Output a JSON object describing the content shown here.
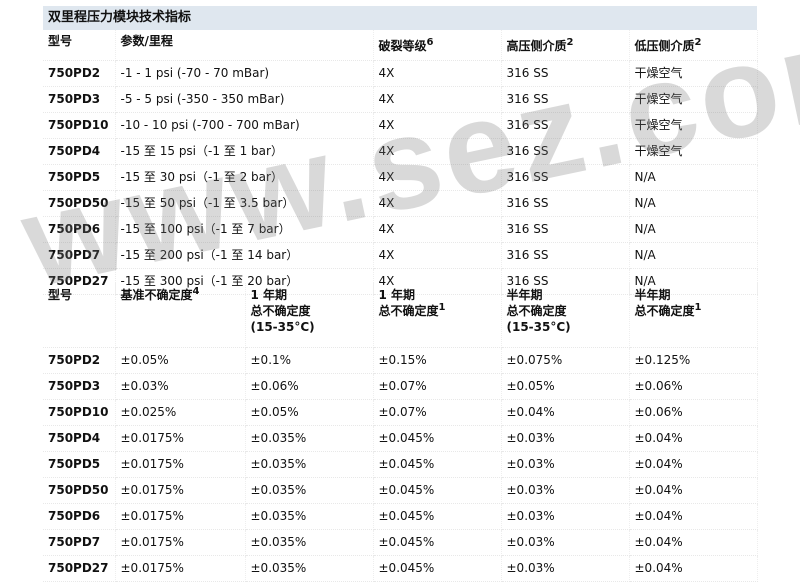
{
  "title": "双里程压力模块技术指标",
  "watermark": "www.sez.com.cn",
  "table1": {
    "headers": [
      {
        "text": "型号",
        "sup": ""
      },
      {
        "text": "参数/里程",
        "sup": ""
      },
      {
        "text": "破裂等级",
        "sup": "6"
      },
      {
        "text": "高压侧介质",
        "sup": "2"
      },
      {
        "text": "低压侧介质",
        "sup": "2"
      }
    ],
    "rows": [
      [
        "750PD2",
        "-1 - 1 psi (-70 - 70 mBar)",
        "4X",
        "316 SS",
        "干燥空气"
      ],
      [
        "750PD3",
        "-5 - 5 psi (-350 - 350 mBar)",
        "4X",
        "316 SS",
        "干燥空气"
      ],
      [
        "750PD10",
        "-10 - 10 psi (-700 - 700 mBar)",
        "4X",
        "316 SS",
        "干燥空气"
      ],
      [
        "750PD4",
        "-15 至 15 psi（-1 至 1 bar）",
        "4X",
        "316 SS",
        "干燥空气"
      ],
      [
        "750PD5",
        "-15 至 30 psi（-1 至 2 bar）",
        "4X",
        "316 SS",
        "N/A"
      ],
      [
        "750PD50",
        "-15 至 50 psi（-1 至 3.5 bar）",
        "4X",
        "316 SS",
        "N/A"
      ],
      [
        "750PD6",
        "-15 至 100 psi（-1 至 7 bar）",
        "4X",
        "316 SS",
        "N/A"
      ],
      [
        "750PD7",
        "-15 至 200 psi（-1 至 14 bar）",
        "4X",
        "316 SS",
        "N/A"
      ],
      [
        "750PD27",
        "-15 至 300 psi（-1 至 20 bar）",
        "4X",
        "316 SS",
        "N/A"
      ]
    ]
  },
  "table2": {
    "headers": [
      {
        "lines": [
          "型号"
        ],
        "sup": ""
      },
      {
        "lines": [
          "基准不确定度"
        ],
        "sup": "4"
      },
      {
        "lines": [
          "1 年期",
          "总不确定度",
          "(15-35°C)"
        ],
        "sup": ""
      },
      {
        "lines": [
          "1 年期",
          "总不确定度"
        ],
        "sup": "1"
      },
      {
        "lines": [
          "半年期",
          "总不确定度",
          "(15-35°C)"
        ],
        "sup": ""
      },
      {
        "lines": [
          "半年期",
          "总不确定度"
        ],
        "sup": "1"
      }
    ],
    "rows": [
      [
        "750PD2",
        "±0.05%",
        "±0.1%",
        "±0.15%",
        "±0.075%",
        "±0.125%"
      ],
      [
        "750PD3",
        "±0.03%",
        "±0.06%",
        "±0.07%",
        "±0.05%",
        "±0.06%"
      ],
      [
        "750PD10",
        "±0.025%",
        "±0.05%",
        "±0.07%",
        "±0.04%",
        "±0.06%"
      ],
      [
        "750PD4",
        "±0.0175%",
        "±0.035%",
        "±0.045%",
        "±0.03%",
        "±0.04%"
      ],
      [
        "750PD5",
        "±0.0175%",
        "±0.035%",
        "±0.045%",
        "±0.03%",
        "±0.04%"
      ],
      [
        "750PD50",
        "±0.0175%",
        "±0.035%",
        "±0.045%",
        "±0.03%",
        "±0.04%"
      ],
      [
        "750PD6",
        "±0.0175%",
        "±0.035%",
        "±0.045%",
        "±0.03%",
        "±0.04%"
      ],
      [
        "750PD7",
        "±0.0175%",
        "±0.035%",
        "±0.045%",
        "±0.03%",
        "±0.04%"
      ],
      [
        "750PD27",
        "±0.0175%",
        "±0.035%",
        "±0.045%",
        "±0.03%",
        "±0.04%"
      ]
    ]
  }
}
